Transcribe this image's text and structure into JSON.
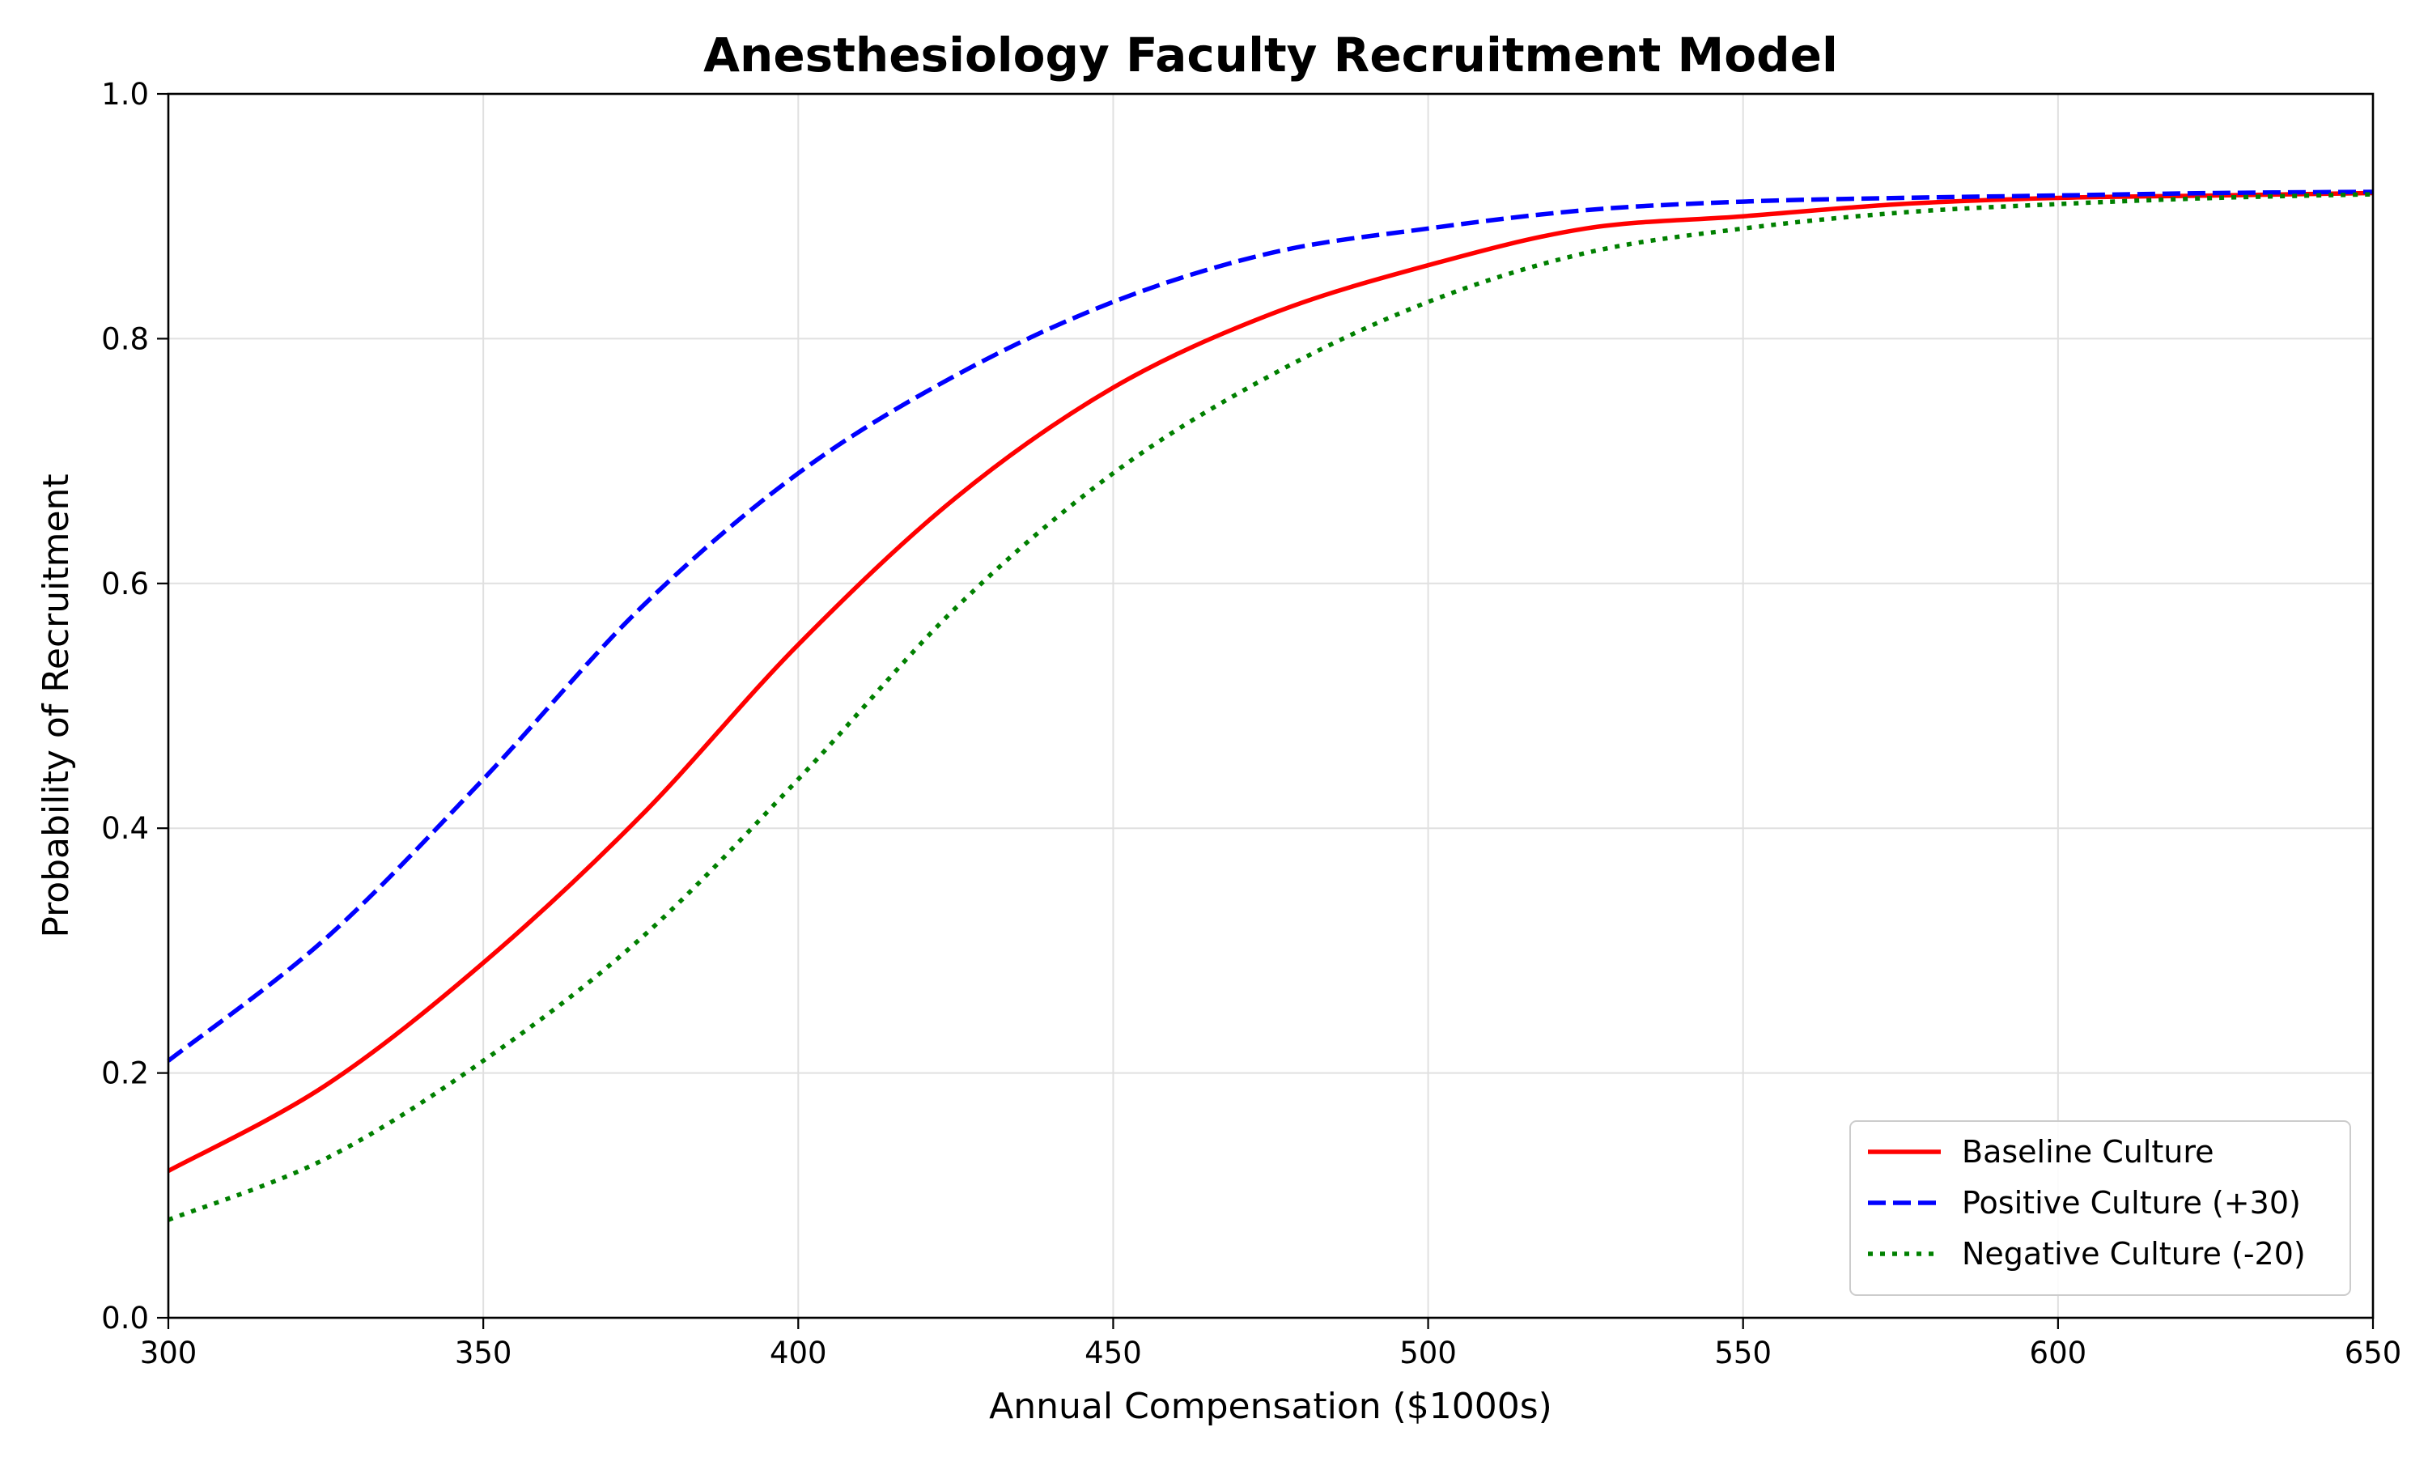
{
  "chart_data": {
    "type": "line",
    "title": "Anesthesiology Faculty Recruitment Model",
    "xlabel": "Annual Compensation ($1000s)",
    "ylabel": "Probability of Recruitment",
    "xlim": [
      300,
      650
    ],
    "ylim": [
      0.0,
      1.0
    ],
    "xticks": [
      300,
      350,
      400,
      450,
      500,
      550,
      600,
      650
    ],
    "yticks": [
      0.0,
      0.2,
      0.4,
      0.6,
      0.8,
      1.0
    ],
    "xtick_labels": [
      "300",
      "350",
      "400",
      "450",
      "500",
      "550",
      "600",
      "650"
    ],
    "ytick_labels": [
      "0.0",
      "0.2",
      "0.4",
      "0.6",
      "0.8",
      "1.0"
    ],
    "grid": true,
    "legend_position": "bottom-right",
    "x": [
      300,
      325,
      350,
      375,
      400,
      425,
      450,
      475,
      500,
      525,
      550,
      575,
      600,
      625,
      650
    ],
    "series": [
      {
        "name": "Baseline Culture",
        "color": "#ff0000",
        "style": "solid",
        "values": [
          0.12,
          0.19,
          0.29,
          0.41,
          0.55,
          0.67,
          0.76,
          0.82,
          0.86,
          0.89,
          0.9,
          0.91,
          0.915,
          0.917,
          0.919
        ]
      },
      {
        "name": "Positive Culture (+30)",
        "color": "#0000ff",
        "style": "dashed",
        "values": [
          0.21,
          0.31,
          0.44,
          0.58,
          0.69,
          0.77,
          0.83,
          0.87,
          0.89,
          0.905,
          0.912,
          0.915,
          0.917,
          0.919,
          0.92
        ]
      },
      {
        "name": "Negative Culture (-20)",
        "color": "#008000",
        "style": "dotted",
        "values": [
          0.08,
          0.13,
          0.21,
          0.31,
          0.44,
          0.58,
          0.69,
          0.77,
          0.83,
          0.87,
          0.89,
          0.903,
          0.91,
          0.915,
          0.918
        ]
      }
    ]
  }
}
